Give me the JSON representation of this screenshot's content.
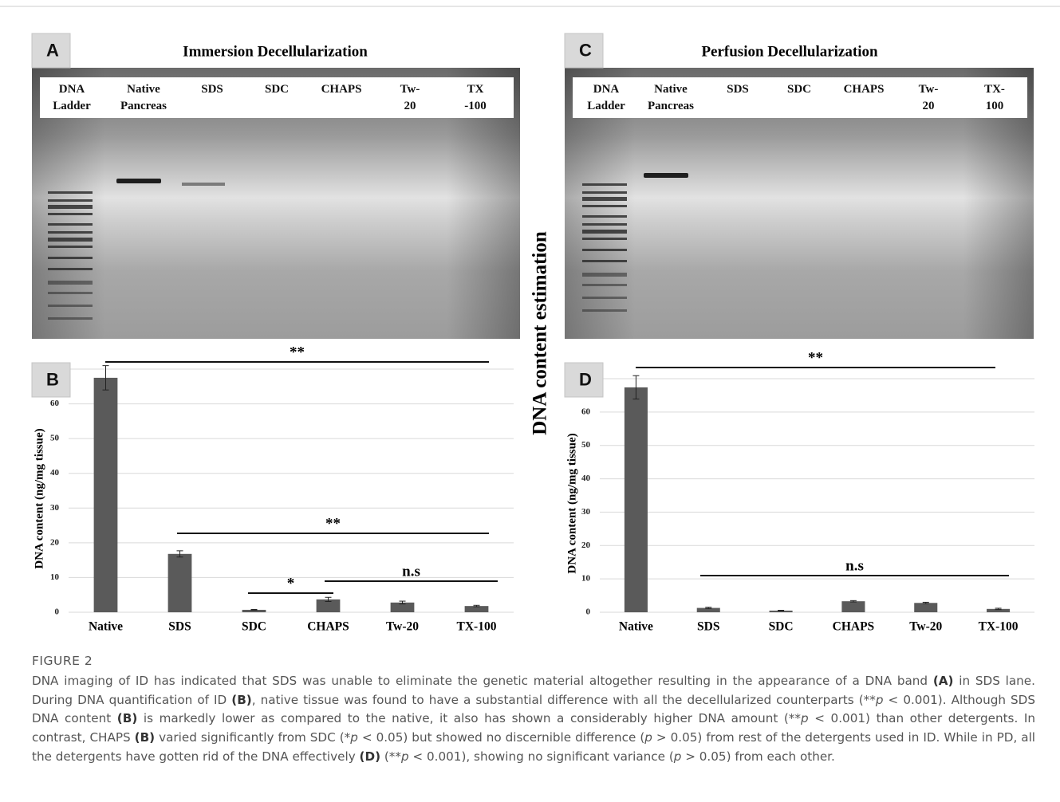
{
  "gels": [
    {
      "label": "A",
      "title": "Immersion  Decellularization",
      "lanes": [
        "DNA\nLadder",
        "Native\nPancreas",
        "SDS",
        "SDC",
        "CHAPS",
        "Tw-\n20",
        "TX\n-100"
      ]
    },
    {
      "label": "C",
      "title": "Perfusion  Decellularization",
      "lanes": [
        "DNA\nLadder",
        "Native\nPancreas",
        "SDS",
        "SDC",
        "CHAPS",
        "Tw-\n20",
        "TX-\n100"
      ]
    }
  ],
  "side_title": "DNA content estimation",
  "chart_data": [
    {
      "type": "bar",
      "label": "B",
      "ylabel": "DNA content (ng/mg tissue)",
      "color": "#5a5a5a",
      "categories": [
        "Native",
        "SDS",
        "SDC",
        "CHAPS",
        "Tw-20",
        "TX-100"
      ],
      "values": [
        67.5,
        16.8,
        0.7,
        3.7,
        2.8,
        1.8
      ],
      "errors": [
        3.5,
        0.9,
        0.1,
        0.6,
        0.4,
        0.2
      ],
      "ylim": [
        0,
        70
      ],
      "yticks": [
        0,
        10,
        20,
        30,
        40,
        50,
        60
      ],
      "grid": true,
      "annotations": [
        "**",
        "**",
        "*",
        "n.s"
      ]
    },
    {
      "type": "bar",
      "label": "D",
      "ylabel": "DNA content (ng/mg tissue)",
      "color": "#5a5a5a",
      "categories": [
        "Native",
        "SDS",
        "SDC",
        "CHAPS",
        "Tw-20",
        "TX-100"
      ],
      "values": [
        67.4,
        1.3,
        0.5,
        3.3,
        2.8,
        1.0
      ],
      "errors": [
        3.5,
        0.2,
        0.1,
        0.2,
        0.2,
        0.2
      ],
      "ylim": [
        0,
        70
      ],
      "yticks": [
        0,
        10,
        20,
        30,
        40,
        50,
        60
      ],
      "grid": true,
      "annotations": [
        "**",
        "n.s"
      ]
    }
  ],
  "caption": {
    "heading": "FIGURE 2",
    "segments": [
      {
        "text": "DNA imaging of ID has indicated that SDS was unable to eliminate the genetic material altogether resulting in the appearance of a DNA band ",
        "style": "normal"
      },
      {
        "text": "(A)",
        "style": "bold"
      },
      {
        "text": " in SDS lane. During DNA quantification of ID ",
        "style": "normal"
      },
      {
        "text": "(B)",
        "style": "bold"
      },
      {
        "text": ", native tissue was found to have a substantial difference with all the decellularized counterparts (**",
        "style": "normal"
      },
      {
        "text": "p",
        "style": "italic"
      },
      {
        "text": " < 0.001). Although SDS DNA content ",
        "style": "normal"
      },
      {
        "text": "(B)",
        "style": "bold"
      },
      {
        "text": " is markedly lower as compared to the native, it also has shown a considerably higher DNA amount (**",
        "style": "normal"
      },
      {
        "text": "p",
        "style": "italic"
      },
      {
        "text": " < 0.001) than other detergents. In contrast, CHAPS ",
        "style": "normal"
      },
      {
        "text": "(B)",
        "style": "bold"
      },
      {
        "text": " varied significantly from SDC (*",
        "style": "normal"
      },
      {
        "text": "p",
        "style": "italic"
      },
      {
        "text": " < 0.05) but showed no discernible difference (",
        "style": "normal"
      },
      {
        "text": "p",
        "style": "italic"
      },
      {
        "text": " > 0.05) from rest of the detergents used in ID. While in PD, all the detergents have gotten rid of the DNA effectively ",
        "style": "normal"
      },
      {
        "text": "(D)",
        "style": "bold"
      },
      {
        "text": " (**",
        "style": "normal"
      },
      {
        "text": "p",
        "style": "italic"
      },
      {
        "text": " < 0.001), showing no significant variance (",
        "style": "normal"
      },
      {
        "text": "p",
        "style": "italic"
      },
      {
        "text": " > 0.05) from each other.",
        "style": "normal"
      }
    ]
  }
}
